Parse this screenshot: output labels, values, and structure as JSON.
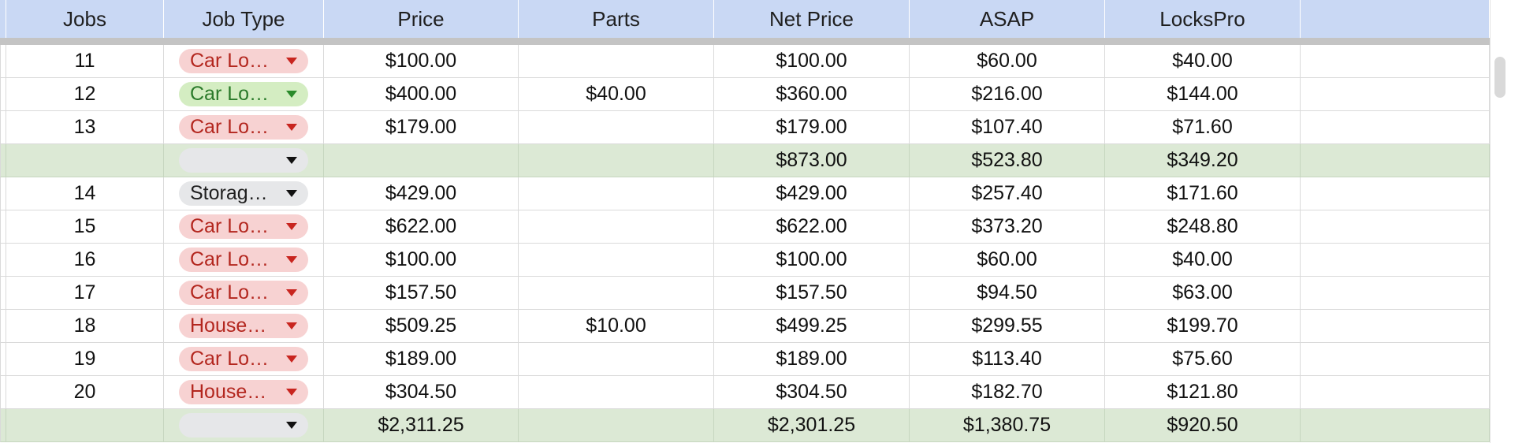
{
  "columns": [
    "Jobs",
    "Job Type",
    "Price",
    "Parts",
    "Net Price",
    "ASAP",
    "LocksPro",
    ""
  ],
  "rows": [
    {
      "type": "job",
      "job": "11",
      "job_type": "Car Lo…",
      "chip": "red",
      "price": "$100.00",
      "parts": "",
      "net": "$100.00",
      "asap": "$60.00",
      "lockspro": "$40.00"
    },
    {
      "type": "job",
      "job": "12",
      "job_type": "Car Lo…",
      "chip": "green",
      "price": "$400.00",
      "parts": "$40.00",
      "net": "$360.00",
      "asap": "$216.00",
      "lockspro": "$144.00"
    },
    {
      "type": "job",
      "job": "13",
      "job_type": "Car Lo…",
      "chip": "red",
      "price": "$179.00",
      "parts": "",
      "net": "$179.00",
      "asap": "$107.40",
      "lockspro": "$71.60"
    },
    {
      "type": "subtotal",
      "job": "",
      "job_type": "",
      "chip": "gray",
      "price": "",
      "parts": "",
      "net": "$873.00",
      "asap": "$523.80",
      "lockspro": "$349.20"
    },
    {
      "type": "job",
      "job": "14",
      "job_type": "Storag…",
      "chip": "gray",
      "price": "$429.00",
      "parts": "",
      "net": "$429.00",
      "asap": "$257.40",
      "lockspro": "$171.60"
    },
    {
      "type": "job",
      "job": "15",
      "job_type": "Car Lo…",
      "chip": "red",
      "price": "$622.00",
      "parts": "",
      "net": "$622.00",
      "asap": "$373.20",
      "lockspro": "$248.80"
    },
    {
      "type": "job",
      "job": "16",
      "job_type": "Car Lo…",
      "chip": "red",
      "price": "$100.00",
      "parts": "",
      "net": "$100.00",
      "asap": "$60.00",
      "lockspro": "$40.00"
    },
    {
      "type": "job",
      "job": "17",
      "job_type": "Car Lo…",
      "chip": "red",
      "price": "$157.50",
      "parts": "",
      "net": "$157.50",
      "asap": "$94.50",
      "lockspro": "$63.00"
    },
    {
      "type": "job",
      "job": "18",
      "job_type": "House…",
      "chip": "red",
      "price": "$509.25",
      "parts": "$10.00",
      "net": "$499.25",
      "asap": "$299.55",
      "lockspro": "$199.70"
    },
    {
      "type": "job",
      "job": "19",
      "job_type": "Car Lo…",
      "chip": "red",
      "price": "$189.00",
      "parts": "",
      "net": "$189.00",
      "asap": "$113.40",
      "lockspro": "$75.60"
    },
    {
      "type": "job",
      "job": "20",
      "job_type": "House…",
      "chip": "red",
      "price": "$304.50",
      "parts": "",
      "net": "$304.50",
      "asap": "$182.70",
      "lockspro": "$121.80"
    },
    {
      "type": "subtotal",
      "job": "",
      "job_type": "",
      "chip": "gray",
      "price": "$2,311.25",
      "parts": "",
      "net": "$2,301.25",
      "asap": "$1,380.75",
      "lockspro": "$920.50"
    }
  ],
  "colors": {
    "header_bg": "#c9d8f4",
    "subtotal_bg": "#dce9d5",
    "chip_red_bg": "#f7d2d2",
    "chip_red_text": "#b3261e",
    "chip_green_bg": "#d4edc2",
    "chip_gray_bg": "#e6e7e9"
  },
  "icons": {
    "dropdown": "caret-down-icon"
  }
}
